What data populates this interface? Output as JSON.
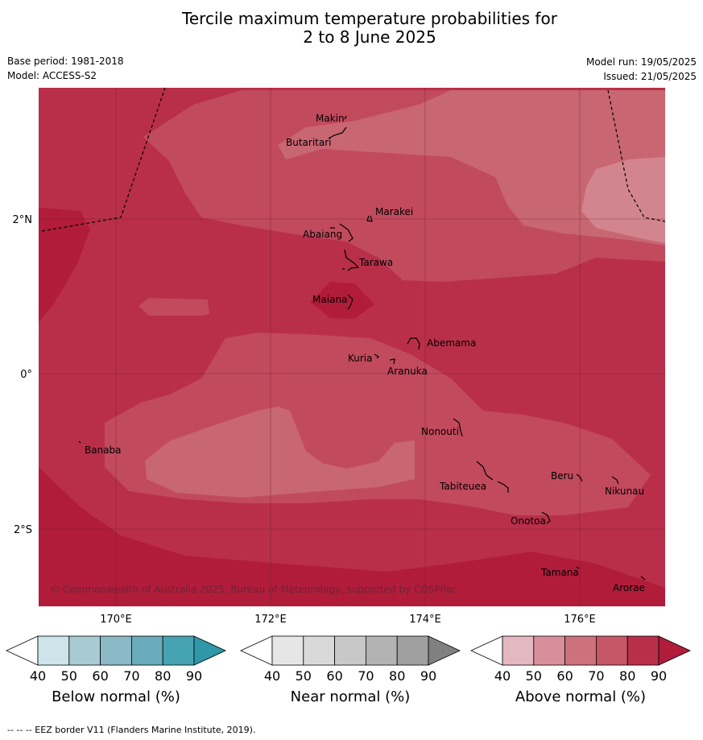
{
  "title_line1": "Tercile maximum temperature probabilities for",
  "title_line2": "2 to 8 June 2025",
  "base_period": "Base period: 1981-2018",
  "model": "Model: ACCESS-S2",
  "model_run": "Model run: 19/05/2025",
  "issued": "Issued: 21/05/2025",
  "copyright": "© Commonwealth of Australia 2025, Bureau of Meteorology, supported by COSPPac",
  "footnote": "-- -- -- EEZ border V11 (Flanders Marine Institute, 2019).",
  "lat_ticks": [
    "2°N",
    "0°",
    "2°S"
  ],
  "lon_ticks": [
    "170°E",
    "172°E",
    "174°E",
    "176°E"
  ],
  "places": [
    {
      "name": "Makin"
    },
    {
      "name": "Butaritari"
    },
    {
      "name": "Marakei"
    },
    {
      "name": "Abaiang"
    },
    {
      "name": "Tarawa"
    },
    {
      "name": "Maiana"
    },
    {
      "name": "Abemama"
    },
    {
      "name": "Kuria"
    },
    {
      "name": "Aranuka"
    },
    {
      "name": "Banaba"
    },
    {
      "name": "Nonouti"
    },
    {
      "name": "Beru"
    },
    {
      "name": "Tabiteuea"
    },
    {
      "name": "Nikunau"
    },
    {
      "name": "Onotoa"
    },
    {
      "name": "Tamana"
    },
    {
      "name": "Arorae"
    }
  ],
  "colorbars": [
    {
      "title": "Below normal (%)",
      "labels": [
        "40",
        "50",
        "60",
        "70",
        "80",
        "90"
      ],
      "colors": [
        "#cce4ea",
        "#a8cbd3",
        "#8bb9c5",
        "#6aacbb",
        "#46a3b2",
        "#2e98a8"
      ]
    },
    {
      "title": "Near normal (%)",
      "labels": [
        "40",
        "50",
        "60",
        "70",
        "80",
        "90"
      ],
      "colors": [
        "#e6e6e6",
        "#d9d9d9",
        "#c8c8c8",
        "#b3b3b3",
        "#a0a0a0",
        "#808080"
      ]
    },
    {
      "title": "Above normal (%)",
      "labels": [
        "40",
        "50",
        "60",
        "70",
        "80",
        "90"
      ],
      "colors": [
        "#e3b8c0",
        "#d88f9b",
        "#cd717d",
        "#c65766",
        "#b92f49",
        "#b11c3b"
      ]
    }
  ]
}
